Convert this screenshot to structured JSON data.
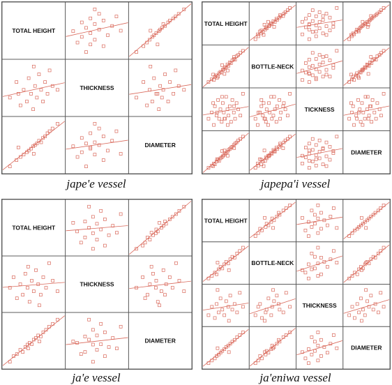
{
  "colors": {
    "points": "#d9685a",
    "line": "#d9685a",
    "grid": "#555555"
  },
  "chart_data": [
    {
      "type": "scatter",
      "title": "jape'e vessel",
      "variables": [
        "TOTAL HEIGHT",
        "THICKNESS",
        "DIAMETER"
      ],
      "grid": true,
      "points": [
        {
          "h": 22.0,
          "t": 1.1,
          "d": 12.0
        },
        {
          "h": 24.5,
          "t": 1.5,
          "d": 13.6
        },
        {
          "h": 26.0,
          "t": 0.9,
          "d": 14.4
        },
        {
          "h": 27.2,
          "t": 1.3,
          "d": 15.0
        },
        {
          "h": 28.4,
          "t": 1.0,
          "d": 15.6
        },
        {
          "h": 29.1,
          "t": 1.6,
          "d": 16.0
        },
        {
          "h": 30.0,
          "t": 1.2,
          "d": 16.5
        },
        {
          "h": 30.8,
          "t": 0.8,
          "d": 17.1
        },
        {
          "h": 31.5,
          "t": 1.4,
          "d": 17.4
        },
        {
          "h": 32.2,
          "t": 1.1,
          "d": 17.8
        },
        {
          "h": 33.0,
          "t": 1.7,
          "d": 18.5
        },
        {
          "h": 33.8,
          "t": 1.3,
          "d": 18.1
        },
        {
          "h": 34.5,
          "t": 1.0,
          "d": 19.2
        },
        {
          "h": 35.3,
          "t": 1.5,
          "d": 19.6
        },
        {
          "h": 36.2,
          "t": 1.2,
          "d": 20.4
        },
        {
          "h": 37.0,
          "t": 1.8,
          "d": 20.9
        },
        {
          "h": 38.1,
          "t": 1.4,
          "d": 21.6
        },
        {
          "h": 40.0,
          "t": 1.3,
          "d": 22.8
        },
        {
          "h": 31.0,
          "t": 1.9,
          "d": 15.2
        },
        {
          "h": 25.2,
          "t": 1.2,
          "d": 16.8
        }
      ]
    },
    {
      "type": "scatter",
      "title": "japepa'i vessel",
      "variables": [
        "TOTAL HEIGHT",
        "BOTTLE-NECK",
        "TICKNESS",
        "DIAMETER"
      ],
      "grid": true,
      "points": [
        {
          "h": 24.0,
          "b": 4.2,
          "t": 1.0,
          "d": 14.0
        },
        {
          "h": 25.5,
          "b": 4.6,
          "t": 1.2,
          "d": 14.8
        },
        {
          "h": 26.5,
          "b": 4.5,
          "t": 0.8,
          "d": 15.5
        },
        {
          "h": 27.0,
          "b": 5.0,
          "t": 1.4,
          "d": 15.2
        },
        {
          "h": 27.8,
          "b": 5.2,
          "t": 1.1,
          "d": 16.2
        },
        {
          "h": 28.5,
          "b": 5.0,
          "t": 1.6,
          "d": 16.8
        },
        {
          "h": 29.0,
          "b": 5.5,
          "t": 1.0,
          "d": 16.4
        },
        {
          "h": 29.6,
          "b": 5.7,
          "t": 1.3,
          "d": 17.3
        },
        {
          "h": 30.2,
          "b": 5.6,
          "t": 0.9,
          "d": 17.6
        },
        {
          "h": 30.7,
          "b": 6.0,
          "t": 1.5,
          "d": 18.0
        },
        {
          "h": 31.2,
          "b": 6.1,
          "t": 1.2,
          "d": 18.4
        },
        {
          "h": 31.8,
          "b": 6.4,
          "t": 1.0,
          "d": 18.9
        },
        {
          "h": 32.3,
          "b": 6.3,
          "t": 1.7,
          "d": 19.1
        },
        {
          "h": 32.9,
          "b": 6.8,
          "t": 1.3,
          "d": 19.6
        },
        {
          "h": 33.4,
          "b": 6.6,
          "t": 1.1,
          "d": 20.2
        },
        {
          "h": 34.0,
          "b": 7.1,
          "t": 1.4,
          "d": 20.5
        },
        {
          "h": 34.6,
          "b": 7.0,
          "t": 0.9,
          "d": 21.0
        },
        {
          "h": 35.2,
          "b": 7.4,
          "t": 1.6,
          "d": 21.3
        },
        {
          "h": 35.9,
          "b": 7.6,
          "t": 1.2,
          "d": 21.9
        },
        {
          "h": 36.5,
          "b": 7.5,
          "t": 1.0,
          "d": 22.4
        },
        {
          "h": 37.2,
          "b": 8.0,
          "t": 1.5,
          "d": 22.8
        },
        {
          "h": 38.0,
          "b": 8.2,
          "t": 1.3,
          "d": 23.5
        },
        {
          "h": 39.0,
          "b": 8.5,
          "t": 1.1,
          "d": 24.0
        },
        {
          "h": 40.2,
          "b": 8.8,
          "t": 1.8,
          "d": 24.8
        },
        {
          "h": 26.2,
          "b": 5.3,
          "t": 1.5,
          "d": 14.6
        },
        {
          "h": 33.0,
          "b": 5.9,
          "t": 0.8,
          "d": 18.2
        },
        {
          "h": 30.4,
          "b": 6.7,
          "t": 1.7,
          "d": 19.8
        },
        {
          "h": 28.0,
          "b": 4.8,
          "t": 1.2,
          "d": 17.0
        },
        {
          "h": 36.0,
          "b": 7.9,
          "t": 1.4,
          "d": 20.8
        },
        {
          "h": 31.5,
          "b": 5.4,
          "t": 1.0,
          "d": 20.0
        }
      ]
    },
    {
      "type": "scatter",
      "title": "ja'e vessel",
      "variables": [
        "TOTAL HEIGHT",
        "THICKNESS",
        "DIAMETER"
      ],
      "grid": true,
      "points": [
        {
          "h": 20.5,
          "t": 1.2,
          "d": 11.0
        },
        {
          "h": 21.8,
          "t": 1.5,
          "d": 12.6
        },
        {
          "h": 23.0,
          "t": 0.9,
          "d": 13.2
        },
        {
          "h": 24.2,
          "t": 1.3,
          "d": 14.4
        },
        {
          "h": 25.1,
          "t": 1.0,
          "d": 13.8
        },
        {
          "h": 26.0,
          "t": 1.6,
          "d": 15.2
        },
        {
          "h": 26.8,
          "t": 1.2,
          "d": 15.9
        },
        {
          "h": 27.5,
          "t": 0.8,
          "d": 16.4
        },
        {
          "h": 28.3,
          "t": 1.4,
          "d": 16.0
        },
        {
          "h": 29.0,
          "t": 1.1,
          "d": 17.3
        },
        {
          "h": 29.8,
          "t": 1.7,
          "d": 17.8
        },
        {
          "h": 30.6,
          "t": 1.3,
          "d": 18.5
        },
        {
          "h": 31.5,
          "t": 1.0,
          "d": 18.2
        },
        {
          "h": 32.4,
          "t": 1.5,
          "d": 19.4
        },
        {
          "h": 33.4,
          "t": 1.2,
          "d": 20.1
        },
        {
          "h": 34.5,
          "t": 1.9,
          "d": 21.0
        },
        {
          "h": 35.8,
          "t": 1.4,
          "d": 21.8
        },
        {
          "h": 37.5,
          "t": 1.1,
          "d": 23.0
        },
        {
          "h": 27.0,
          "t": 1.8,
          "d": 14.8
        },
        {
          "h": 31.0,
          "t": 0.7,
          "d": 16.8
        }
      ]
    },
    {
      "type": "scatter",
      "title": "ja'eniwa vessel",
      "variables": [
        "TOTAL HEIGHT",
        "BOTTLE-NECK",
        "THICKNESS",
        "DIAMETER"
      ],
      "grid": true,
      "points": [
        {
          "h": 22.0,
          "b": 4.5,
          "t": 1.0,
          "d": 12.5
        },
        {
          "h": 23.5,
          "b": 4.8,
          "t": 1.3,
          "d": 13.4
        },
        {
          "h": 24.8,
          "b": 5.2,
          "t": 0.9,
          "d": 14.1
        },
        {
          "h": 25.6,
          "b": 5.0,
          "t": 1.4,
          "d": 14.9
        },
        {
          "h": 26.5,
          "b": 5.6,
          "t": 1.1,
          "d": 15.4
        },
        {
          "h": 27.3,
          "b": 5.9,
          "t": 1.6,
          "d": 16.0
        },
        {
          "h": 28.1,
          "b": 5.7,
          "t": 1.2,
          "d": 16.6
        },
        {
          "h": 29.0,
          "b": 6.2,
          "t": 1.0,
          "d": 17.2
        },
        {
          "h": 29.8,
          "b": 6.5,
          "t": 1.5,
          "d": 17.9
        },
        {
          "h": 30.7,
          "b": 6.3,
          "t": 1.3,
          "d": 18.4
        },
        {
          "h": 31.6,
          "b": 6.8,
          "t": 1.7,
          "d": 19.0
        },
        {
          "h": 32.5,
          "b": 7.1,
          "t": 1.2,
          "d": 19.7
        },
        {
          "h": 33.5,
          "b": 7.0,
          "t": 1.4,
          "d": 20.3
        },
        {
          "h": 34.6,
          "b": 7.5,
          "t": 1.1,
          "d": 21.2
        },
        {
          "h": 35.8,
          "b": 7.8,
          "t": 1.8,
          "d": 21.9
        },
        {
          "h": 37.2,
          "b": 8.2,
          "t": 1.3,
          "d": 22.8
        },
        {
          "h": 26.0,
          "b": 6.4,
          "t": 1.9,
          "d": 17.5
        },
        {
          "h": 31.0,
          "b": 5.5,
          "t": 0.8,
          "d": 16.2
        }
      ]
    }
  ]
}
